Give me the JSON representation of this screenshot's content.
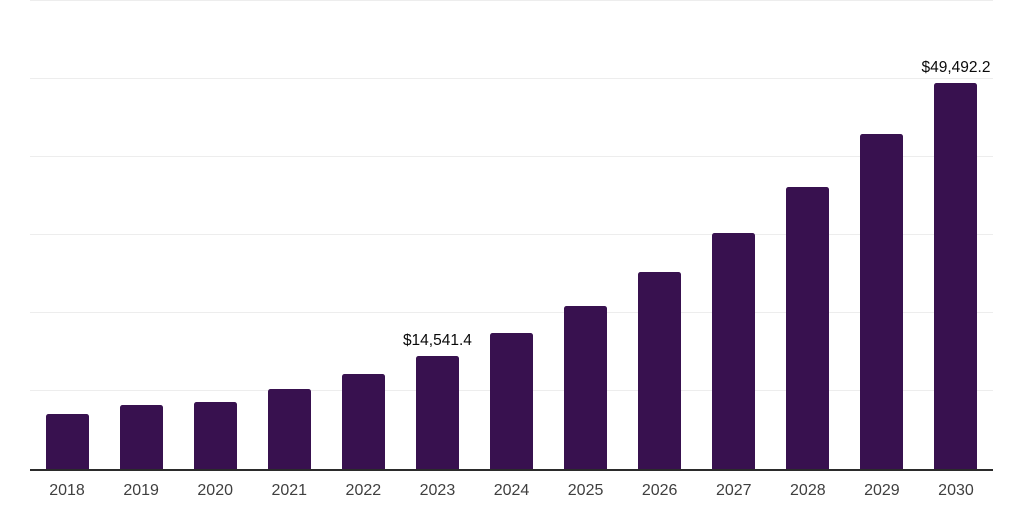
{
  "chart_data": {
    "type": "bar",
    "categories": [
      "2018",
      "2019",
      "2020",
      "2021",
      "2022",
      "2023",
      "2024",
      "2025",
      "2026",
      "2027",
      "2028",
      "2029",
      "2030"
    ],
    "values": [
      7000,
      8200,
      8600,
      10200,
      12200,
      14541.4,
      17400,
      20900,
      25300,
      30300,
      36200,
      42900,
      49492.2
    ],
    "point_labels": [
      "",
      "",
      "",
      "",
      "",
      "$14,541.4",
      "",
      "",
      "",
      "",
      "",
      "",
      "$49,492.2"
    ],
    "title": "",
    "xlabel": "",
    "ylabel": "",
    "ylim": [
      0,
      60000
    ],
    "gridline_interval": 10000,
    "grid_visible": true,
    "y_axis_labels_visible": false,
    "legend": "none",
    "note": "Only 2023 and 2030 bars carry visible data labels; other values estimated from gridlines (10,000 per division)",
    "colors": {
      "bar": "#38114F",
      "gridline": "#EDEDED",
      "axis_line": "#2B2B2B",
      "tick_label": "#3F3F3F",
      "data_label": "#0A0A0A",
      "background": "#FFFFFF"
    }
  }
}
